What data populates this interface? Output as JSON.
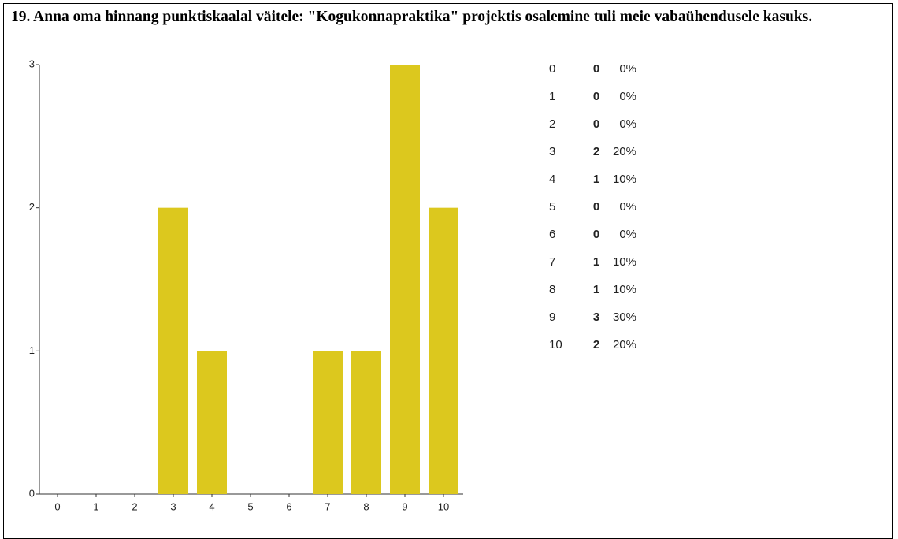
{
  "chart_data": {
    "type": "bar",
    "title": "19. Anna oma hinnang punktiskaalal väitele: \"Kogukonnapraktika\" projektis osalemine tuli meie vabaühendusele kasuks.",
    "categories": [
      "0",
      "1",
      "2",
      "3",
      "4",
      "5",
      "6",
      "7",
      "8",
      "9",
      "10"
    ],
    "values": [
      0,
      0,
      0,
      2,
      1,
      0,
      0,
      1,
      1,
      3,
      2
    ],
    "percentages": [
      "0%",
      "0%",
      "0%",
      "20%",
      "10%",
      "0%",
      "0%",
      "10%",
      "10%",
      "30%",
      "20%"
    ],
    "color": "#dcc81e",
    "ylim": [
      0,
      3
    ],
    "yticks": [
      0,
      1,
      2,
      3
    ],
    "grid": false
  }
}
